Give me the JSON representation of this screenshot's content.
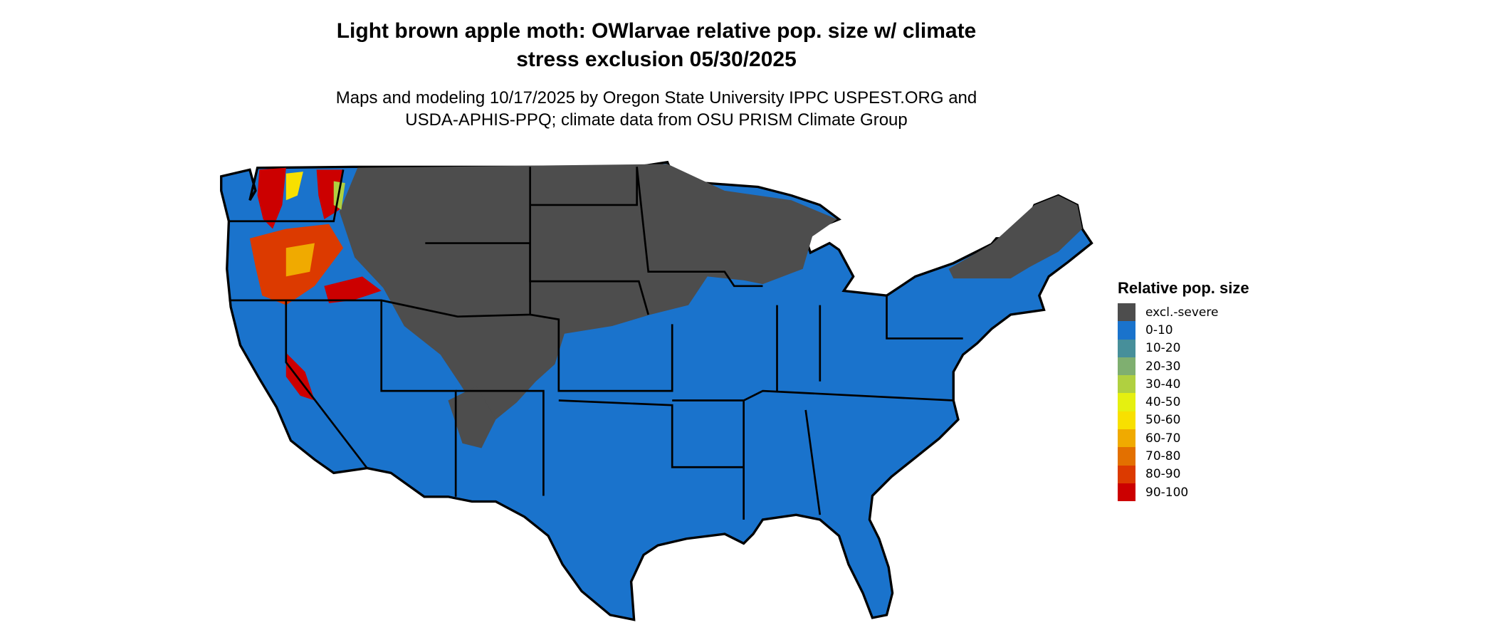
{
  "header": {
    "title_line1": "Light brown apple moth: OWlarvae relative pop. size w/ climate",
    "title_line2": "stress exclusion 05/30/2025",
    "subtitle_line1": "Maps and modeling 10/17/2025 by Oregon State University IPPC USPEST.ORG and",
    "subtitle_line2": "USDA-APHIS-PPQ; climate data from OSU PRISM Climate Group"
  },
  "chart_data": {
    "type": "map",
    "region": "Contiguous United States",
    "legend": {
      "title": "Relative pop. size",
      "placement": "right",
      "items": [
        {
          "label": "excl.-severe",
          "color": "#4d4d4d"
        },
        {
          "label": "0-10",
          "color": "#1a73cc"
        },
        {
          "label": "10-20",
          "color": "#478f9a"
        },
        {
          "label": "20-30",
          "color": "#7faf70"
        },
        {
          "label": "30-40",
          "color": "#b0d040"
        },
        {
          "label": "40-50",
          "color": "#e5f010"
        },
        {
          "label": "50-60",
          "color": "#f8e000"
        },
        {
          "label": "60-70",
          "color": "#f0aa00"
        },
        {
          "label": "70-80",
          "color": "#e37000"
        },
        {
          "label": "80-90",
          "color": "#dc3a00"
        },
        {
          "label": "90-100",
          "color": "#cc0000"
        }
      ]
    }
  }
}
